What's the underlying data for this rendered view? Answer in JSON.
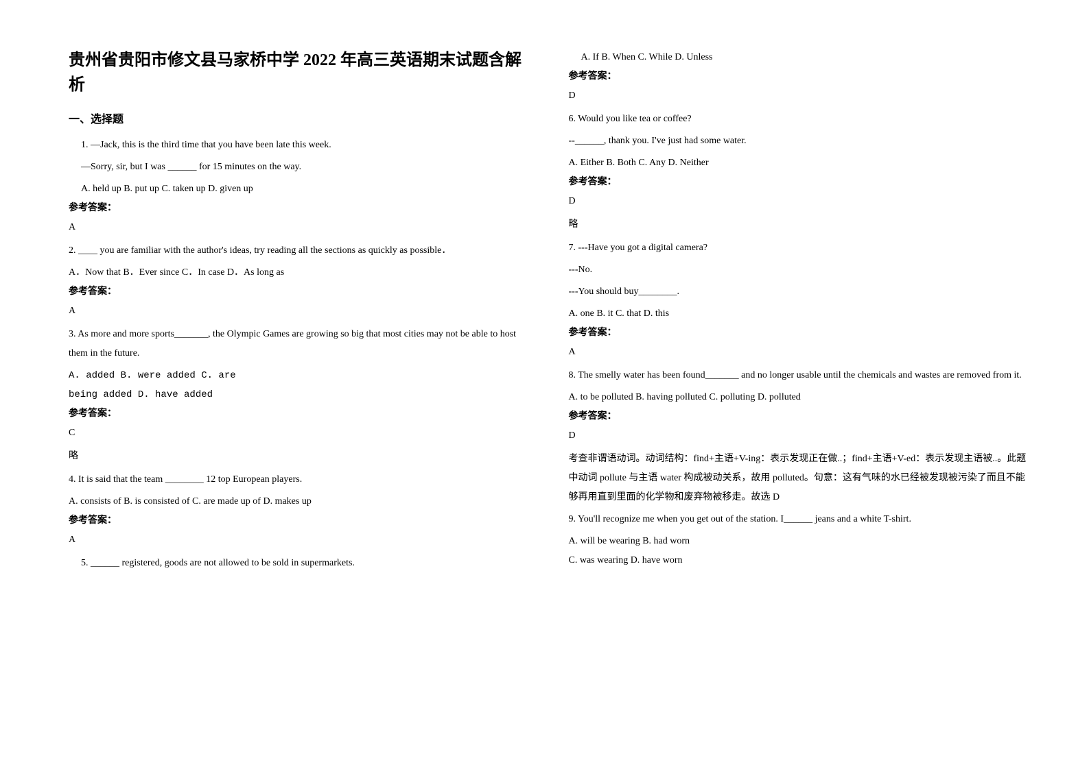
{
  "title": "贵州省贵阳市修文县马家桥中学 2022 年高三英语期末试题含解析",
  "section1_heading": "一、选择题",
  "q1": {
    "line1": "1. —Jack, this is the third time that you have been late this week.",
    "line2": "—Sorry, sir, but I was ______ for 15 minutes on the way.",
    "opts": "A. held up     B. put up     C. taken up     D. given up",
    "ans_label": "参考答案：",
    "ans": "A"
  },
  "q2": {
    "line1": "2. ____ you are familiar with the author's ideas, try reading all the sections as quickly as possible．",
    "opts": "A．Now that     B．Ever since        C．In case       D．As long as",
    "ans_label": "参考答案：",
    "ans": "A"
  },
  "q3": {
    "line1": "3. As more and more sports_______, the Olympic Games are growing so big that most cities may not be able to host them in the future.",
    "opts1": "A. added                          B. were added                  C. are",
    "opts2": "being added        D. have added",
    "ans_label": "参考答案：",
    "ans": "C",
    "extra": "略"
  },
  "q4": {
    "line1": "4. It is said that the team ________ 12 top European players.",
    "opts": "A. consists of   B. is consisted of   C. are made up of   D. makes up",
    "ans_label": "参考答案：",
    "ans": "A"
  },
  "q5": {
    "line1": "5. ______ registered, goods are not allowed to be sold in supermarkets.",
    "opts": "A. If          B. When         C. While         D. Unless",
    "ans_label": "参考答案：",
    "ans": "D"
  },
  "q6": {
    "line1": "6. Would you like tea or coffee?",
    "line2": "--______, thank you. I've just had some water.",
    "opts": "A. Either    B. Both      C. Any      D. Neither",
    "ans_label": "参考答案：",
    "ans": "D",
    "extra": "略"
  },
  "q7": {
    "line1": "7. ---Have you got a digital camera?",
    "line2": "---No.",
    "line3": "---You should buy________.",
    "opts": "A. one                  B. it                    C. that                   D. this",
    "ans_label": "参考答案：",
    "ans": "A"
  },
  "q8": {
    "line1": "8. The smelly water has been found_______ and no longer usable until the chemicals and wastes are removed from it.",
    "opts": "A. to be polluted    B. having polluted       C. polluting      D. polluted",
    "ans_label": "参考答案：",
    "ans": "D",
    "explain": "考查非谓语动词。动词结构：find+主语+V-ing：表示发现正在做..；find+主语+V-ed：表示发现主语被..。此题中动词 pollute 与主语 water 构成被动关系，故用 polluted。句意：这有气味的水已经被发现被污染了而且不能够再用直到里面的化学物和废弃物被移走。故选 D"
  },
  "q9": {
    "line1": "9. You'll recognize me when you get out of the station. I______ jeans and a white T-shirt.",
    "opts1": "A. will be wearing   B. had worn",
    "opts2": "C. was wearing    D. have worn"
  }
}
